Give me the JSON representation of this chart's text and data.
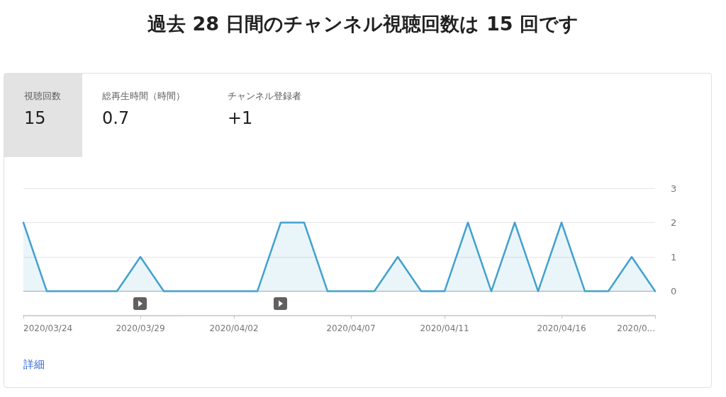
{
  "chart_data": {
    "type": "area",
    "title": "過去 28 日間のチャンネル視聴回数は 15 回です",
    "annotations": [
      "視聴回数",
      "15",
      "総再生時間（時間）",
      "0.7",
      "チャンネル登録者",
      "+1",
      "詳細"
    ],
    "x": [
      "2020-03-24",
      "2020-03-25",
      "2020-03-26",
      "2020-03-27",
      "2020-03-28",
      "2020-03-29",
      "2020-03-30",
      "2020-03-31",
      "2020-04-01",
      "2020-04-02",
      "2020-04-03",
      "2020-04-04",
      "2020-04-05",
      "2020-04-06",
      "2020-04-07",
      "2020-04-08",
      "2020-04-09",
      "2020-04-10",
      "2020-04-11",
      "2020-04-12",
      "2020-04-13",
      "2020-04-14",
      "2020-04-15",
      "2020-04-16",
      "2020-04-17",
      "2020-04-18",
      "2020-04-19",
      "2020-04-20"
    ],
    "values": [
      2,
      0,
      0,
      0,
      0,
      1,
      0,
      0,
      0,
      0,
      0,
      2,
      2,
      0,
      0,
      0,
      1,
      0,
      0,
      2,
      0,
      2,
      0,
      2,
      0,
      0,
      1,
      0
    ],
    "color": "#42a1cf",
    "xlim": [
      "2020-03-24",
      "2020-04-20"
    ],
    "xticks": [
      {
        "value": "2020-03-24",
        "label": "2020/03/24"
      },
      {
        "value": "2020-03-29",
        "label": "2020/03/29"
      },
      {
        "value": "2020-04-02",
        "label": "2020/04/02"
      },
      {
        "value": "2020-04-07",
        "label": "2020/04/07"
      },
      {
        "value": "2020-04-11",
        "label": "2020/04/11"
      },
      {
        "value": "2020-04-16",
        "label": "2020/04/16"
      },
      {
        "value": "2020-04-20",
        "label": "2020/0..."
      }
    ],
    "ylim": [
      -0.7,
      3
    ],
    "yticks": [
      0,
      1,
      2,
      3
    ],
    "grid": "y",
    "marker": "none"
  }
}
